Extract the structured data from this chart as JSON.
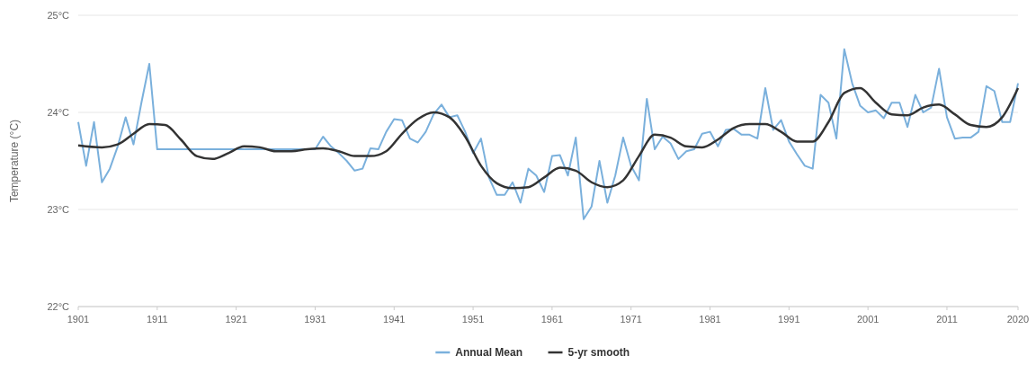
{
  "chart_data": {
    "type": "line",
    "ylabel": "Temperature (°C)",
    "xlim": [
      1901,
      2020
    ],
    "xticks": [
      1901,
      1911,
      1921,
      1931,
      1941,
      1951,
      1961,
      1971,
      1981,
      1991,
      2001,
      2011,
      2020
    ],
    "ylim": [
      22,
      25
    ],
    "yticks": [
      {
        "value": 22,
        "label": "22°C"
      },
      {
        "value": 23,
        "label": "23°C"
      },
      {
        "value": 24,
        "label": "24°C"
      },
      {
        "value": 25,
        "label": "25°C"
      }
    ],
    "grid": "y",
    "legend": "bottom",
    "marker": "none",
    "line_style": "solid",
    "series": [
      {
        "name": "Annual Mean",
        "color": "#7ab0dc",
        "x": [
          1901,
          1902,
          1903,
          1904,
          1905,
          1906,
          1907,
          1908,
          1909,
          1910,
          1911,
          1931,
          1932,
          1933,
          1934,
          1935,
          1936,
          1937,
          1938,
          1939,
          1940,
          1941,
          1942,
          1943,
          1944,
          1945,
          1946,
          1947,
          1948,
          1949,
          1950,
          1951,
          1952,
          1953,
          1954,
          1955,
          1956,
          1957,
          1958,
          1959,
          1960,
          1961,
          1962,
          1963,
          1964,
          1965,
          1966,
          1967,
          1968,
          1969,
          1970,
          1971,
          1972,
          1973,
          1974,
          1975,
          1976,
          1977,
          1978,
          1979,
          1980,
          1981,
          1982,
          1983,
          1984,
          1985,
          1986,
          1987,
          1988,
          1989,
          1990,
          1991,
          1992,
          1993,
          1994,
          1995,
          1996,
          1997,
          1998,
          1999,
          2000,
          2001,
          2002,
          2003,
          2004,
          2005,
          2006,
          2007,
          2008,
          2009,
          2010,
          2011,
          2012,
          2013,
          2014,
          2015,
          2016,
          2017,
          2018,
          2019,
          2020
        ],
        "values": [
          23.9,
          23.45,
          23.9,
          23.28,
          23.42,
          23.65,
          23.95,
          23.67,
          24.1,
          24.5,
          23.62,
          23.62,
          23.75,
          23.65,
          23.58,
          23.5,
          23.4,
          23.42,
          23.63,
          23.62,
          23.8,
          23.93,
          23.92,
          23.73,
          23.69,
          23.8,
          23.98,
          24.08,
          23.95,
          23.97,
          23.8,
          23.58,
          23.73,
          23.33,
          23.15,
          23.15,
          23.28,
          23.07,
          23.42,
          23.35,
          23.18,
          23.55,
          23.56,
          23.35,
          23.74,
          22.9,
          23.03,
          23.5,
          23.07,
          23.35,
          23.74,
          23.45,
          23.3,
          24.14,
          23.62,
          23.75,
          23.68,
          23.52,
          23.6,
          23.62,
          23.78,
          23.8,
          23.65,
          23.82,
          23.83,
          23.77,
          23.77,
          23.73,
          24.25,
          23.82,
          23.92,
          23.7,
          23.57,
          23.45,
          23.42,
          24.18,
          24.1,
          23.73,
          24.65,
          24.3,
          24.07,
          24.0,
          24.02,
          23.94,
          24.1,
          24.1,
          23.85,
          24.18,
          24.0,
          24.05,
          24.45,
          23.95,
          23.73,
          23.74,
          23.74,
          23.8,
          24.27,
          24.22,
          23.9,
          23.9,
          24.3
        ]
      },
      {
        "name": "5-yr smooth",
        "color": "#333333",
        "x": [
          1901,
          1904,
          1906,
          1908,
          1910,
          1912,
          1914,
          1916,
          1918,
          1920,
          1922,
          1924,
          1926,
          1928,
          1930,
          1932,
          1934,
          1936,
          1938,
          1940,
          1942,
          1944,
          1946,
          1948,
          1950,
          1952,
          1954,
          1956,
          1958,
          1960,
          1962,
          1964,
          1966,
          1968,
          1970,
          1972,
          1974,
          1976,
          1978,
          1980,
          1982,
          1984,
          1986,
          1988,
          1990,
          1992,
          1994,
          1996,
          1998,
          2000,
          2002,
          2004,
          2006,
          2008,
          2010,
          2012,
          2014,
          2016,
          2018,
          2020
        ],
        "values": [
          23.66,
          23.64,
          23.67,
          23.78,
          23.88,
          23.87,
          23.72,
          23.55,
          23.52,
          23.58,
          23.65,
          23.64,
          23.6,
          23.6,
          23.62,
          23.63,
          23.6,
          23.55,
          23.55,
          23.6,
          23.78,
          23.93,
          24.0,
          23.95,
          23.75,
          23.45,
          23.27,
          23.22,
          23.23,
          23.33,
          23.43,
          23.4,
          23.28,
          23.23,
          23.3,
          23.55,
          23.77,
          23.74,
          23.65,
          23.64,
          23.72,
          23.84,
          23.88,
          23.88,
          23.8,
          23.7,
          23.7,
          23.9,
          24.2,
          24.25,
          24.1,
          23.98,
          23.97,
          24.05,
          24.08,
          23.98,
          23.87,
          23.85,
          23.95,
          24.25
        ]
      }
    ]
  }
}
